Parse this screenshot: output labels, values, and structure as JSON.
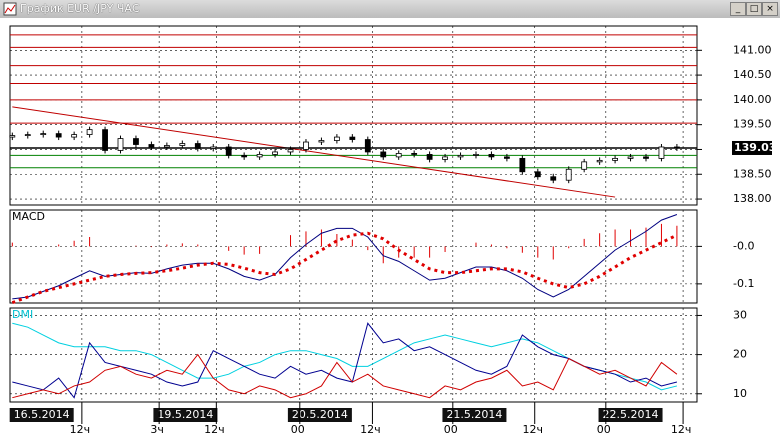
{
  "window": {
    "title": "График EUR /JPY ЧАС"
  },
  "chart_data": [
    {
      "type": "ohlc",
      "xlim": [
        -0.15,
        44.3
      ],
      "ylim": [
        137.88,
        141.49
      ],
      "yticks": [
        {
          "value": 138,
          "label": "138.00"
        },
        {
          "value": 138.5,
          "label": "138.50"
        },
        {
          "value": 139,
          "label": "139.00"
        },
        {
          "value": 139.5,
          "label": "139.50"
        },
        {
          "value": 140,
          "label": "140.00"
        },
        {
          "value": 140.5,
          "label": "140.50"
        },
        {
          "value": 141,
          "label": "141.00"
        }
      ],
      "grid": true,
      "open": [
        139.25,
        139.28,
        139.3,
        139.32,
        139.25,
        139.3,
        139.4,
        138.98,
        139.22,
        139.1,
        139.05,
        139.08,
        139.12,
        139.02,
        139.05,
        138.88,
        138.85,
        138.9,
        138.95,
        139.0,
        139.15,
        139.18,
        139.25,
        139.2,
        138.95,
        138.85,
        138.92,
        138.9,
        138.8,
        138.85,
        138.88,
        138.9,
        138.85,
        138.82,
        138.55,
        138.45,
        138.38,
        138.6,
        138.75,
        138.78,
        138.82,
        138.85,
        138.82,
        139.05
      ],
      "high": [
        139.34,
        139.36,
        139.38,
        139.38,
        139.36,
        139.46,
        139.46,
        139.28,
        139.28,
        139.16,
        139.14,
        139.18,
        139.18,
        139.11,
        139.11,
        138.94,
        138.96,
        139.01,
        139.06,
        139.21,
        139.24,
        139.31,
        139.31,
        139.26,
        139.01,
        138.98,
        138.98,
        138.96,
        138.91,
        138.94,
        138.96,
        138.96,
        138.91,
        138.88,
        138.61,
        138.51,
        138.66,
        138.81,
        138.84,
        138.88,
        138.91,
        138.91,
        139.11,
        139.11
      ],
      "low": [
        139.19,
        139.22,
        139.24,
        139.19,
        139.19,
        139.24,
        138.92,
        138.92,
        139.04,
        138.99,
        138.99,
        139.02,
        138.96,
        138.96,
        138.82,
        138.79,
        138.79,
        138.84,
        138.89,
        138.94,
        139.09,
        139.12,
        139.14,
        138.89,
        138.79,
        138.79,
        138.84,
        138.74,
        138.74,
        138.79,
        138.82,
        138.79,
        138.76,
        138.49,
        138.39,
        138.32,
        138.32,
        138.54,
        138.69,
        138.72,
        138.76,
        138.76,
        138.76,
        138.97
      ],
      "close": [
        139.28,
        139.3,
        139.32,
        139.25,
        139.3,
        139.4,
        138.98,
        139.22,
        139.1,
        139.05,
        139.08,
        139.12,
        139.02,
        139.05,
        138.88,
        138.85,
        138.9,
        138.95,
        139.0,
        139.15,
        139.18,
        139.25,
        139.2,
        138.95,
        138.85,
        138.92,
        138.9,
        138.8,
        138.85,
        138.88,
        138.9,
        138.85,
        138.82,
        138.55,
        138.45,
        138.38,
        138.6,
        138.75,
        138.78,
        138.82,
        138.85,
        138.82,
        139.05,
        139.03
      ],
      "levels": [
        {
          "value": 141.31,
          "color": "#c00000"
        },
        {
          "value": 141.06,
          "color": "#c00000"
        },
        {
          "value": 140.69,
          "color": "#c00000"
        },
        {
          "value": 140.33,
          "color": "#c00000"
        },
        {
          "value": 140.0,
          "color": "#c00000"
        },
        {
          "value": 139.53,
          "color": "#c00000"
        },
        {
          "value": 138.88,
          "color": "#008000"
        },
        {
          "value": 138.63,
          "color": "#008000"
        }
      ],
      "last_price": 139.03,
      "trendline": {
        "x": [
          0,
          39
        ],
        "y": [
          139.86,
          138.04
        ],
        "color": "#c00000"
      }
    },
    {
      "type": "macd",
      "title": "MACD",
      "xlim": [
        -0.15,
        44.3
      ],
      "ylim": [
        -0.151,
        0.097
      ],
      "yticks": [
        {
          "value": 0,
          "label": "-0.0"
        },
        {
          "value": -0.1,
          "label": "-0.1"
        }
      ],
      "grid": true,
      "series": [
        {
          "style": "histogram",
          "color": "#e00000",
          "values": [
            0.01,
            0,
            0,
            0.005,
            0.015,
            0.025,
            0,
            0,
            0.002,
            -0.002,
            0.005,
            0.008,
            0.005,
            0,
            -0.012,
            -0.022,
            -0.02,
            0,
            0.03,
            0.04,
            0.045,
            0.033,
            0.018,
            -0.01,
            -0.045,
            -0.03,
            -0.03,
            -0.03,
            -0.015,
            0,
            0.01,
            0.005,
            -0.005,
            -0.017,
            -0.03,
            -0.035,
            -0.005,
            0.02,
            0.035,
            0.045,
            0.045,
            0.05,
            0.06,
            0.055
          ]
        },
        {
          "style": "line",
          "color": "#000080",
          "values": [
            -0.14,
            -0.135,
            -0.12,
            -0.105,
            -0.085,
            -0.065,
            -0.08,
            -0.075,
            -0.07,
            -0.072,
            -0.06,
            -0.05,
            -0.045,
            -0.045,
            -0.06,
            -0.08,
            -0.09,
            -0.075,
            -0.03,
            0.005,
            0.035,
            0.048,
            0.048,
            0.025,
            -0.025,
            -0.04,
            -0.065,
            -0.09,
            -0.085,
            -0.07,
            -0.055,
            -0.055,
            -0.065,
            -0.085,
            -0.115,
            -0.135,
            -0.115,
            -0.08,
            -0.045,
            -0.01,
            0.015,
            0.04,
            0.07,
            0.085
          ]
        },
        {
          "style": "dotted",
          "color": "#e00000",
          "values": [
            -0.15,
            -0.135,
            -0.12,
            -0.11,
            -0.1,
            -0.09,
            -0.08,
            -0.075,
            -0.072,
            -0.07,
            -0.065,
            -0.058,
            -0.05,
            -0.045,
            -0.048,
            -0.058,
            -0.07,
            -0.075,
            -0.06,
            -0.035,
            -0.01,
            0.015,
            0.03,
            0.035,
            0.02,
            -0.01,
            -0.035,
            -0.06,
            -0.07,
            -0.07,
            -0.065,
            -0.06,
            -0.06,
            -0.068,
            -0.085,
            -0.1,
            -0.11,
            -0.1,
            -0.08,
            -0.055,
            -0.03,
            -0.01,
            0.01,
            0.03
          ]
        }
      ]
    },
    {
      "type": "line",
      "title": "DMI",
      "xlim": [
        -0.15,
        44.3
      ],
      "ylim": [
        7.9,
        31.9
      ],
      "yticks": [
        10,
        20,
        30
      ],
      "grid": true,
      "xticks": [
        {
          "value": 4.5,
          "label": "12ч"
        },
        {
          "value": 9.5,
          "label": "3ч"
        },
        {
          "value": 13.2,
          "label": "12ч"
        },
        {
          "value": 18.6,
          "label": "00"
        },
        {
          "value": 23.3,
          "label": "12ч"
        },
        {
          "value": 28.5,
          "label": "00"
        },
        {
          "value": 33.8,
          "label": "12ч"
        },
        {
          "value": 38.4,
          "label": "00"
        },
        {
          "value": 43.4,
          "label": "12ч"
        }
      ],
      "date_labels": [
        {
          "value": 1.9,
          "label": "16.5.2014"
        },
        {
          "value": 11.2,
          "label": "19.5.2014"
        },
        {
          "value": 19.9,
          "label": "20.5.2014"
        },
        {
          "value": 29.9,
          "label": "21.5.2014"
        },
        {
          "value": 40,
          "label": "22.5.2014"
        }
      ],
      "series": [
        {
          "color": "#00d0e0",
          "values": [
            28,
            27,
            25,
            23,
            22,
            22,
            22,
            21,
            21,
            20,
            18,
            16,
            14,
            14,
            15,
            17,
            18,
            20,
            21,
            21,
            20,
            19,
            17,
            17,
            19,
            21,
            23,
            24,
            25,
            24,
            23,
            22,
            23,
            24,
            23,
            21,
            19,
            17,
            16,
            15,
            14,
            13,
            11,
            12
          ]
        },
        {
          "color": "#000090",
          "values": [
            13,
            12,
            11,
            14,
            9,
            23,
            18,
            17,
            16,
            15,
            13,
            12,
            13,
            21,
            19,
            17,
            15,
            14,
            17,
            15,
            16,
            14,
            13,
            28,
            23,
            24,
            21,
            22,
            20,
            18,
            16,
            15,
            17,
            25,
            22,
            20,
            19,
            17,
            16,
            15,
            13,
            14,
            12,
            13
          ]
        },
        {
          "color": "#d00000",
          "values": [
            9,
            10,
            11,
            10,
            12,
            13,
            16,
            17,
            15,
            14,
            16,
            15,
            20,
            14,
            11,
            10,
            12,
            11,
            9,
            10,
            12,
            18,
            13,
            15,
            12,
            11,
            10,
            9,
            12,
            11,
            13,
            14,
            16,
            12,
            13,
            11,
            19,
            17,
            15,
            16,
            14,
            12,
            18,
            15
          ]
        }
      ]
    }
  ]
}
